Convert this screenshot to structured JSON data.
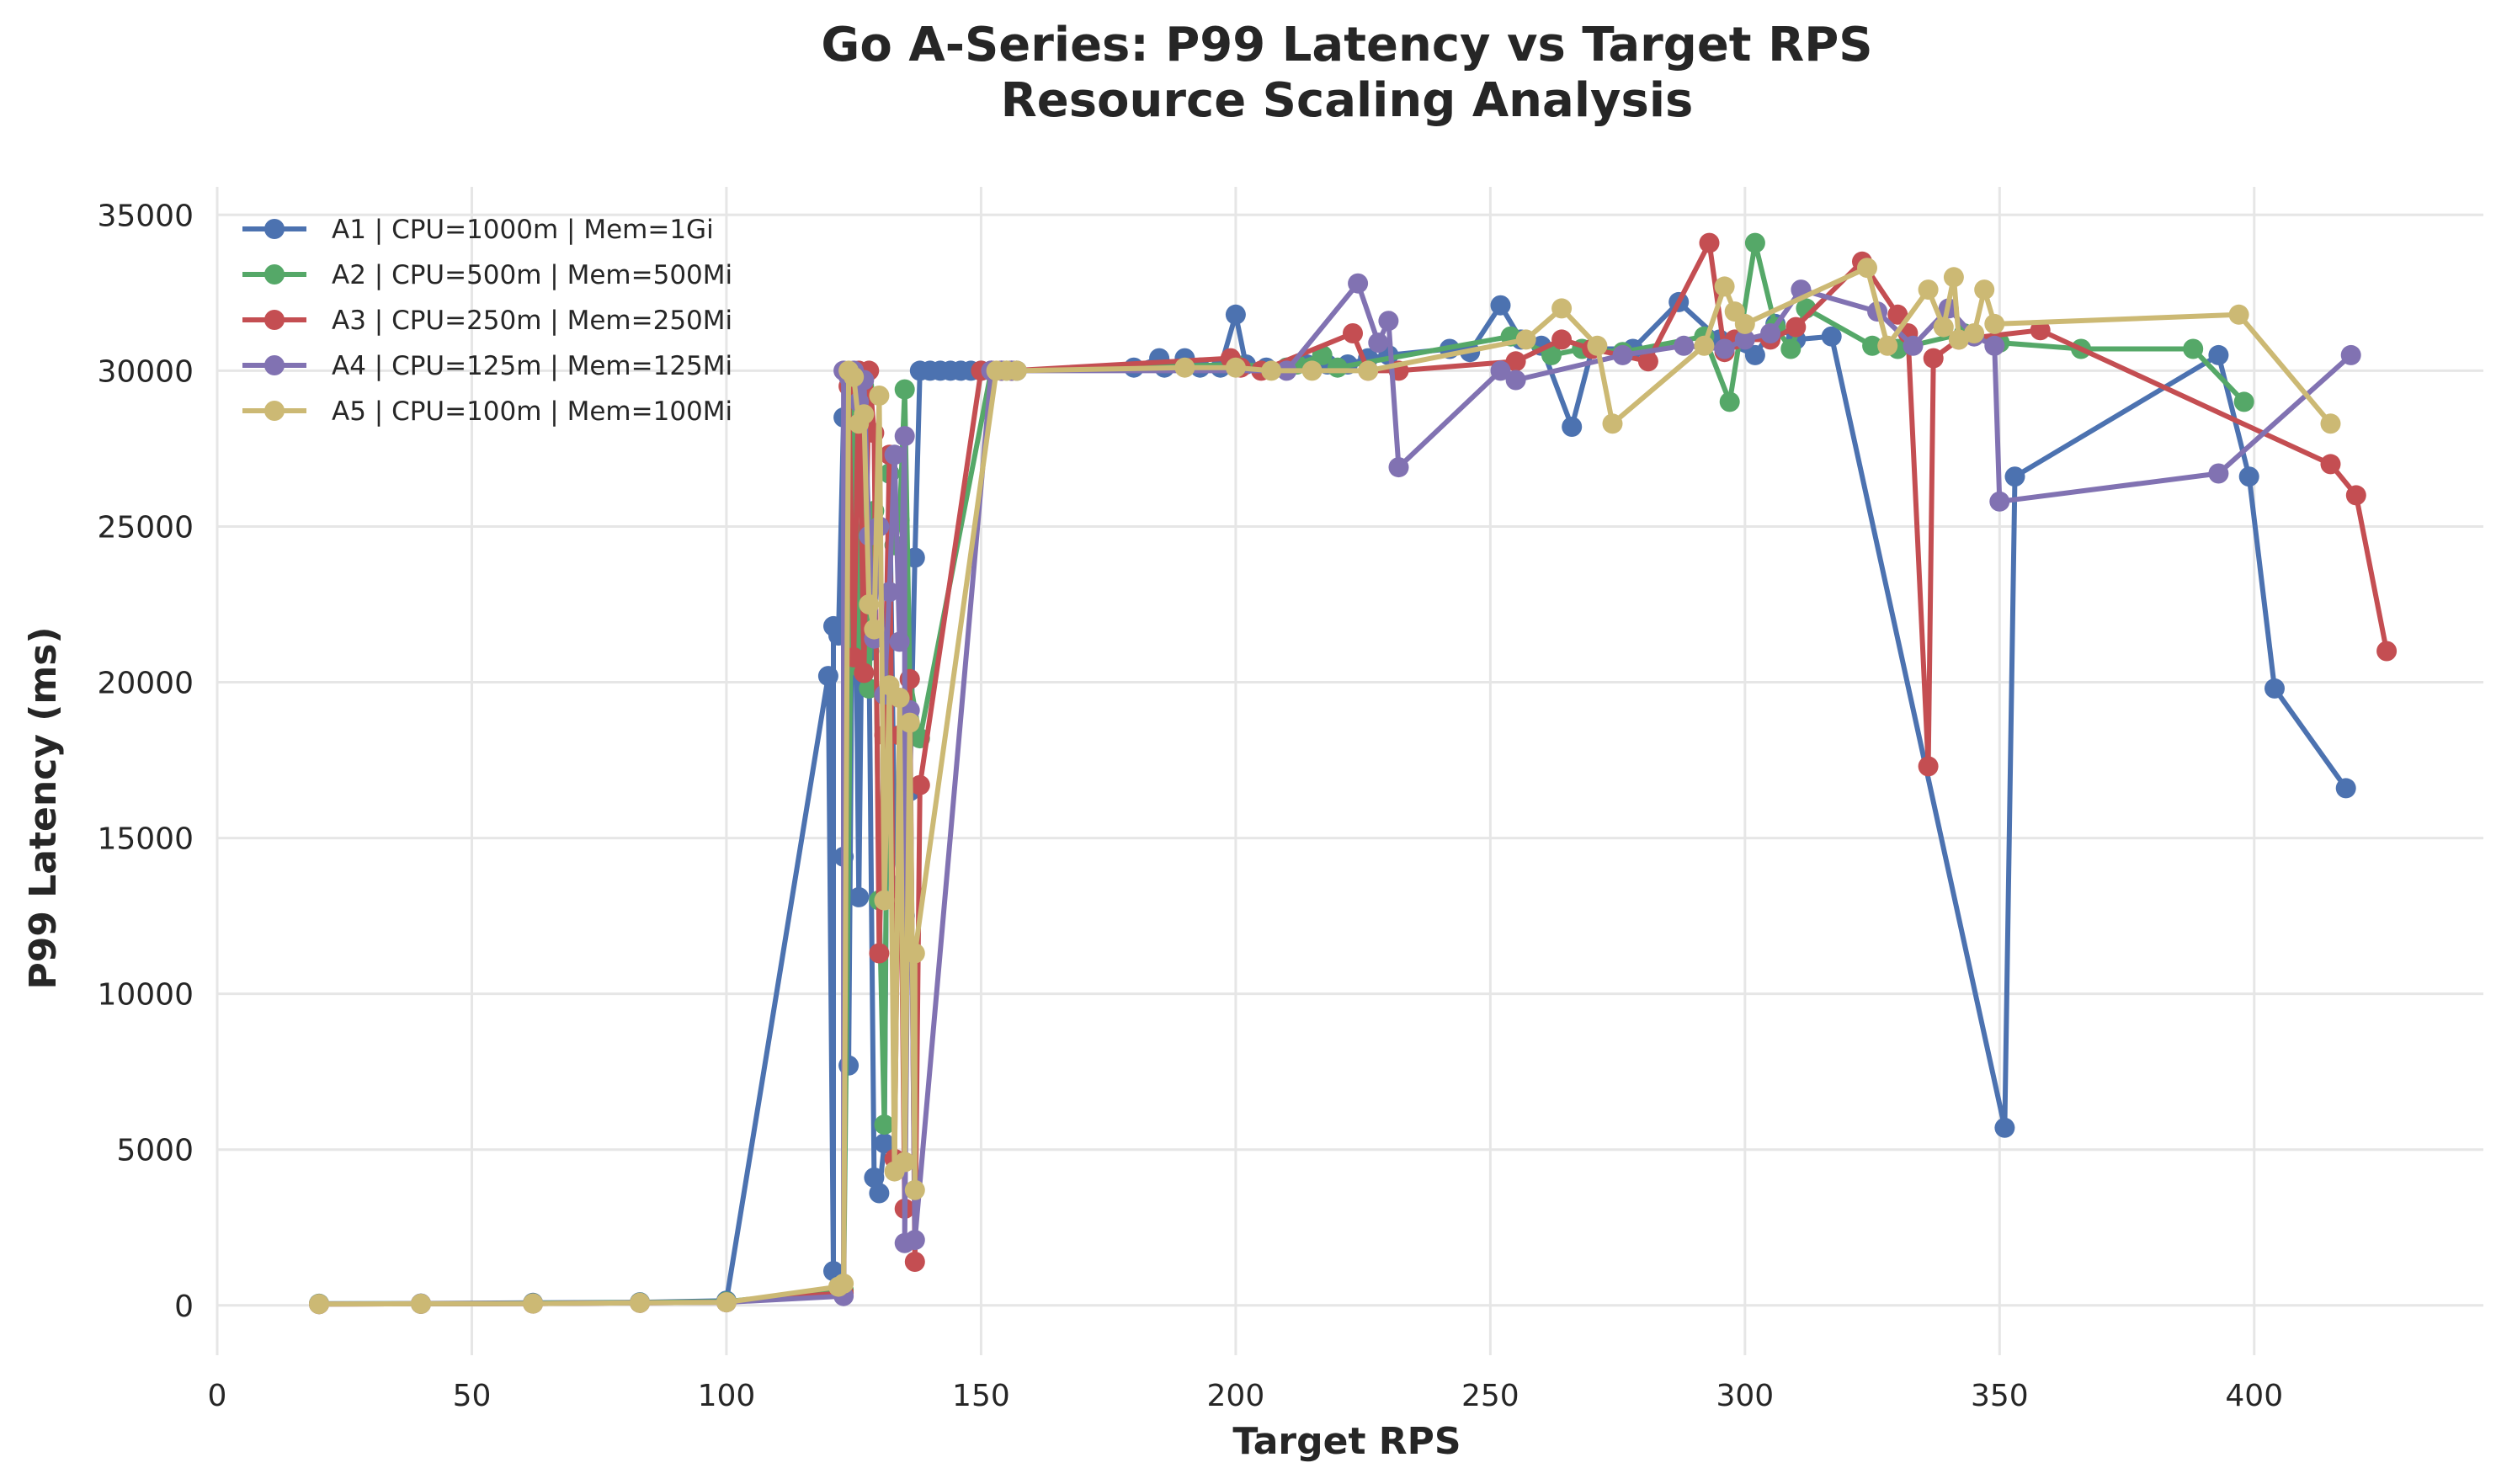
{
  "chart_data": {
    "type": "line",
    "title": "Go A-Series: P99 Latency vs Target RPS",
    "subtitle": "Resource Scaling Analysis",
    "xlabel": "Target RPS",
    "ylabel": "P99 Latency (ms)",
    "xlim": [
      0,
      445
    ],
    "ylim": [
      -1600,
      35900
    ],
    "xticks": [
      0,
      50,
      100,
      150,
      200,
      250,
      300,
      350,
      400
    ],
    "yticks": [
      0,
      5000,
      10000,
      15000,
      20000,
      25000,
      30000,
      35000
    ],
    "grid": true,
    "legend_position": "top-left",
    "series": [
      {
        "name": "A1 | CPU=1000m | Mem=1Gi",
        "color": "#4c72b0",
        "points": [
          [
            20,
            50
          ],
          [
            40,
            60
          ],
          [
            62,
            80
          ],
          [
            83,
            100
          ],
          [
            100,
            150
          ],
          [
            120,
            20200
          ],
          [
            121,
            1100
          ],
          [
            121,
            21800
          ],
          [
            122,
            21500
          ],
          [
            123,
            28500
          ],
          [
            123,
            14400
          ],
          [
            124,
            7700
          ],
          [
            125,
            29000
          ],
          [
            126,
            13100
          ],
          [
            127,
            28200
          ],
          [
            128,
            21000
          ],
          [
            129,
            4100
          ],
          [
            130,
            3600
          ],
          [
            131,
            5200
          ],
          [
            132,
            26700
          ],
          [
            133,
            15000
          ],
          [
            134,
            13500
          ],
          [
            135,
            12500
          ],
          [
            136,
            16500
          ],
          [
            137,
            24000
          ],
          [
            138,
            30000
          ],
          [
            140,
            30000
          ],
          [
            142,
            30000
          ],
          [
            144,
            30000
          ],
          [
            146,
            30000
          ],
          [
            148,
            30000
          ],
          [
            150,
            30000
          ],
          [
            152,
            30000
          ],
          [
            154,
            30000
          ],
          [
            156,
            30000
          ],
          [
            180,
            30100
          ],
          [
            185,
            30400
          ],
          [
            186,
            30100
          ],
          [
            190,
            30400
          ],
          [
            193,
            30100
          ],
          [
            197,
            30100
          ],
          [
            200,
            31800
          ],
          [
            202,
            30200
          ],
          [
            206,
            30100
          ],
          [
            210,
            30100
          ],
          [
            214,
            30200
          ],
          [
            218,
            30200
          ],
          [
            222,
            30200
          ],
          [
            226,
            30400
          ],
          [
            230,
            30500
          ],
          [
            242,
            30700
          ],
          [
            246,
            30600
          ],
          [
            252,
            32100
          ],
          [
            256,
            31000
          ],
          [
            260,
            30800
          ],
          [
            266,
            28200
          ],
          [
            270,
            30700
          ],
          [
            278,
            30700
          ],
          [
            287,
            32200
          ],
          [
            295,
            31000
          ],
          [
            302,
            30500
          ],
          [
            306,
            31500
          ],
          [
            310,
            31000
          ],
          [
            317,
            31100
          ],
          [
            351,
            5700
          ],
          [
            353,
            26600
          ],
          [
            393,
            30500
          ],
          [
            399,
            26600
          ],
          [
            404,
            19800
          ],
          [
            418,
            16600
          ]
        ]
      },
      {
        "name": "A2 | CPU=500m | Mem=500Mi",
        "color": "#55a868",
        "points": [
          [
            20,
            50
          ],
          [
            40,
            50
          ],
          [
            62,
            70
          ],
          [
            83,
            90
          ],
          [
            100,
            120
          ],
          [
            123,
            500
          ],
          [
            125,
            29800
          ],
          [
            126,
            20500
          ],
          [
            127,
            29500
          ],
          [
            128,
            19800
          ],
          [
            129,
            25500
          ],
          [
            130,
            13000
          ],
          [
            131,
            5800
          ],
          [
            132,
            26700
          ],
          [
            133,
            24400
          ],
          [
            134,
            25200
          ],
          [
            135,
            29400
          ],
          [
            136,
            20100
          ],
          [
            138,
            18200
          ],
          [
            152,
            30000
          ],
          [
            155,
            30000
          ],
          [
            157,
            30000
          ],
          [
            200,
            30200
          ],
          [
            210,
            30100
          ],
          [
            212,
            30200
          ],
          [
            217,
            30500
          ],
          [
            220,
            30100
          ],
          [
            254,
            31100
          ],
          [
            262,
            30500
          ],
          [
            268,
            30700
          ],
          [
            276,
            30600
          ],
          [
            292,
            31100
          ],
          [
            297,
            29000
          ],
          [
            302,
            34100
          ],
          [
            306,
            31400
          ],
          [
            309,
            30700
          ],
          [
            312,
            32000
          ],
          [
            325,
            30800
          ],
          [
            330,
            30700
          ],
          [
            343,
            31200
          ],
          [
            350,
            30900
          ],
          [
            366,
            30700
          ],
          [
            388,
            30700
          ],
          [
            398,
            29000
          ]
        ]
      },
      {
        "name": "A3 | CPU=250m | Mem=250Mi",
        "color": "#c44e52",
        "points": [
          [
            20,
            40
          ],
          [
            40,
            50
          ],
          [
            62,
            60
          ],
          [
            83,
            80
          ],
          [
            100,
            100
          ],
          [
            123,
            400
          ],
          [
            124,
            29500
          ],
          [
            125,
            20800
          ],
          [
            126,
            30000
          ],
          [
            127,
            20300
          ],
          [
            128,
            30000
          ],
          [
            129,
            28000
          ],
          [
            130,
            11300
          ],
          [
            131,
            18300
          ],
          [
            132,
            27300
          ],
          [
            133,
            4700
          ],
          [
            134,
            18300
          ],
          [
            135,
            3100
          ],
          [
            136,
            20100
          ],
          [
            137,
            1400
          ],
          [
            138,
            16700
          ],
          [
            150,
            30000
          ],
          [
            152,
            30000
          ],
          [
            154,
            30000
          ],
          [
            156,
            30000
          ],
          [
            199,
            30400
          ],
          [
            201,
            30100
          ],
          [
            205,
            30000
          ],
          [
            223,
            31200
          ],
          [
            226,
            30000
          ],
          [
            232,
            30000
          ],
          [
            255,
            30300
          ],
          [
            264,
            31000
          ],
          [
            270,
            30700
          ],
          [
            281,
            30300
          ],
          [
            293,
            34100
          ],
          [
            296,
            30600
          ],
          [
            298,
            31000
          ],
          [
            305,
            31000
          ],
          [
            310,
            31400
          ],
          [
            323,
            33500
          ],
          [
            330,
            31800
          ],
          [
            332,
            31200
          ],
          [
            336,
            17300
          ],
          [
            337,
            30400
          ],
          [
            342,
            31000
          ],
          [
            358,
            31300
          ],
          [
            415,
            27000
          ],
          [
            420,
            26000
          ],
          [
            426,
            21000
          ]
        ]
      },
      {
        "name": "A4 | CPU=125m | Mem=125Mi",
        "color": "#8172b2",
        "points": [
          [
            20,
            40
          ],
          [
            40,
            50
          ],
          [
            62,
            60
          ],
          [
            83,
            80
          ],
          [
            100,
            100
          ],
          [
            123,
            300
          ],
          [
            123,
            30000
          ],
          [
            124,
            29800
          ],
          [
            125,
            30000
          ],
          [
            126,
            29000
          ],
          [
            127,
            29700
          ],
          [
            128,
            24700
          ],
          [
            129,
            21400
          ],
          [
            130,
            25000
          ],
          [
            131,
            19600
          ],
          [
            132,
            22900
          ],
          [
            133,
            27300
          ],
          [
            134,
            21300
          ],
          [
            135,
            27900
          ],
          [
            135,
            2000
          ],
          [
            136,
            19100
          ],
          [
            137,
            2100
          ],
          [
            152,
            30000
          ],
          [
            154,
            30000
          ],
          [
            156,
            30000
          ],
          [
            157,
            30000
          ],
          [
            210,
            30000
          ],
          [
            224,
            32800
          ],
          [
            228,
            30900
          ],
          [
            230,
            31600
          ],
          [
            232,
            26900
          ],
          [
            252,
            30000
          ],
          [
            255,
            29700
          ],
          [
            276,
            30500
          ],
          [
            288,
            30800
          ],
          [
            296,
            30700
          ],
          [
            300,
            31000
          ],
          [
            305,
            31200
          ],
          [
            311,
            32600
          ],
          [
            326,
            31900
          ],
          [
            333,
            30800
          ],
          [
            340,
            32000
          ],
          [
            345,
            31100
          ],
          [
            349,
            30800
          ],
          [
            350,
            25800
          ],
          [
            393,
            26700
          ],
          [
            419,
            30500
          ]
        ]
      },
      {
        "name": "A5 | CPU=100m | Mem=100Mi",
        "color": "#ccb974",
        "points": [
          [
            20,
            40
          ],
          [
            40,
            50
          ],
          [
            62,
            60
          ],
          [
            83,
            80
          ],
          [
            100,
            100
          ],
          [
            122,
            600
          ],
          [
            123,
            700
          ],
          [
            124,
            30000
          ],
          [
            125,
            29800
          ],
          [
            126,
            28300
          ],
          [
            127,
            28600
          ],
          [
            128,
            22500
          ],
          [
            129,
            21700
          ],
          [
            130,
            29200
          ],
          [
            131,
            13000
          ],
          [
            132,
            19900
          ],
          [
            133,
            4300
          ],
          [
            134,
            19500
          ],
          [
            135,
            4600
          ],
          [
            136,
            18700
          ],
          [
            137,
            3700
          ],
          [
            137,
            11300
          ],
          [
            153,
            30000
          ],
          [
            155,
            30000
          ],
          [
            157,
            30000
          ],
          [
            190,
            30100
          ],
          [
            200,
            30100
          ],
          [
            207,
            30000
          ],
          [
            215,
            30000
          ],
          [
            226,
            30000
          ],
          [
            257,
            31000
          ],
          [
            264,
            32000
          ],
          [
            271,
            30800
          ],
          [
            274,
            28300
          ],
          [
            292,
            30800
          ],
          [
            296,
            32700
          ],
          [
            298,
            31900
          ],
          [
            300,
            31500
          ],
          [
            324,
            33300
          ],
          [
            328,
            30800
          ],
          [
            336,
            32600
          ],
          [
            339,
            31400
          ],
          [
            341,
            33000
          ],
          [
            342,
            31000
          ],
          [
            345,
            31200
          ],
          [
            347,
            32600
          ],
          [
            349,
            31500
          ],
          [
            397,
            31800
          ],
          [
            415,
            28300
          ]
        ]
      }
    ]
  }
}
